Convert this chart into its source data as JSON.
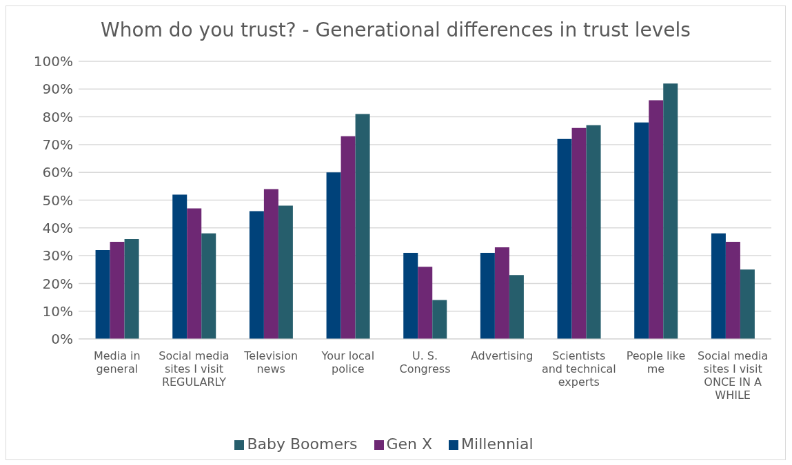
{
  "chart_data": {
    "type": "bar",
    "title": "Whom do you trust? - Generational differences in trust levels",
    "categories": [
      "Media in general",
      "Social media sites I visit REGULARLY",
      "Television news",
      "Your local police",
      "U. S. Congress",
      "Advertising",
      "Scientists and technical experts",
      "People like me",
      "Social media sites I visit ONCE IN A WHILE"
    ],
    "series": [
      {
        "name": "Millennial",
        "color": "#00427a",
        "values": [
          32,
          52,
          46,
          60,
          31,
          31,
          72,
          78,
          38
        ]
      },
      {
        "name": "Gen X",
        "color": "#6e2874",
        "values": [
          35,
          47,
          54,
          73,
          26,
          33,
          76,
          86,
          35
        ]
      },
      {
        "name": "Baby Boomers",
        "color": "#265e6c",
        "values": [
          36,
          38,
          48,
          81,
          14,
          23,
          77,
          92,
          25
        ]
      }
    ],
    "ylim": [
      0,
      100
    ],
    "yticks": [
      {
        "value": 0,
        "label": "0%"
      },
      {
        "value": 10,
        "label": "10%"
      },
      {
        "value": 20,
        "label": "20%"
      },
      {
        "value": 30,
        "label": "30%"
      },
      {
        "value": 40,
        "label": "40%"
      },
      {
        "value": 50,
        "label": "50%"
      },
      {
        "value": 60,
        "label": "60%"
      },
      {
        "value": 70,
        "label": "70%"
      },
      {
        "value": 80,
        "label": "80%"
      },
      {
        "value": 90,
        "label": "90%"
      },
      {
        "value": 100,
        "label": "100%"
      }
    ],
    "grid": "y",
    "legend": "bottom"
  }
}
